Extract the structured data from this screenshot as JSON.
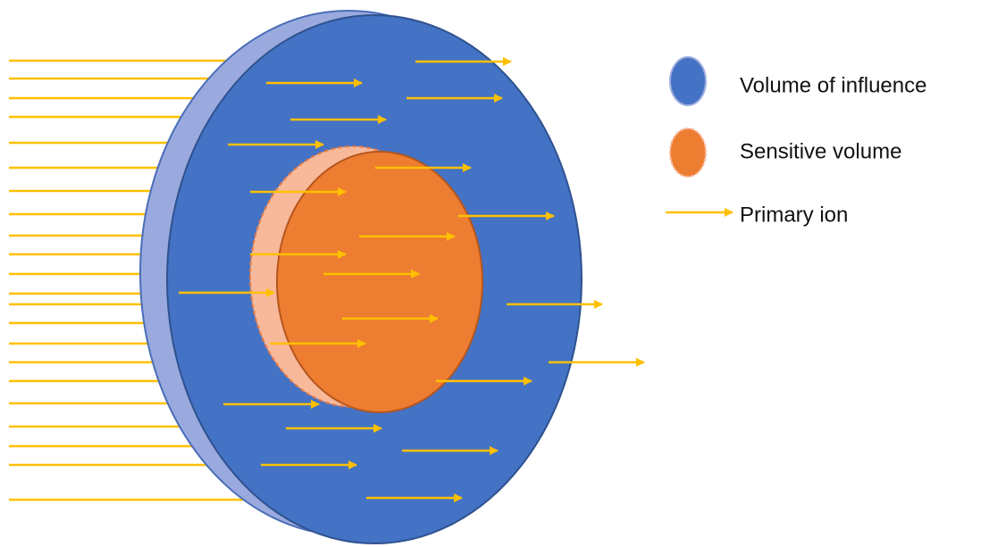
{
  "legend": [
    {
      "label": "Volume of influence"
    },
    {
      "label": "Sensitive volume"
    },
    {
      "label": "Primary ion"
    }
  ]
}
